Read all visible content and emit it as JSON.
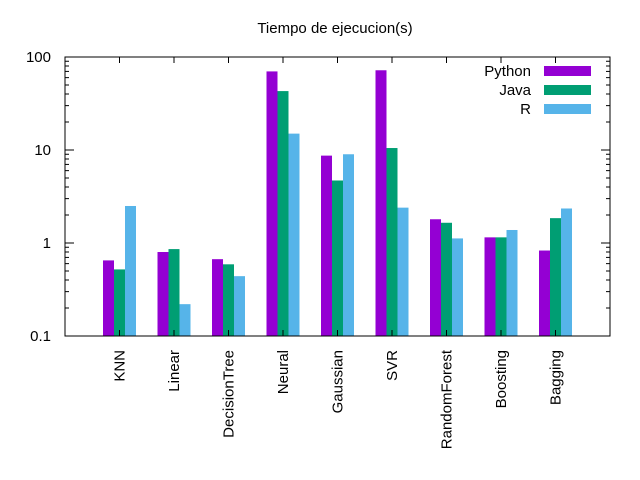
{
  "chart_data": {
    "type": "bar",
    "title": "Tiempo de ejecucion(s)",
    "xlabel": "",
    "ylabel": "",
    "yscale": "log",
    "ylim": [
      0.1,
      100
    ],
    "yticks": [
      0.1,
      1,
      10,
      100
    ],
    "ytick_labels": [
      "0.1",
      "1",
      "10",
      "100"
    ],
    "grid": false,
    "legend_position": "top-right",
    "categories": [
      "KNN",
      "Linear",
      "DecisionTree",
      "Neural",
      "Gaussian",
      "SVR",
      "RandomForest",
      "Boosting",
      "Bagging"
    ],
    "series": [
      {
        "name": "Python",
        "color": "#9400d3",
        "values": [
          0.65,
          0.8,
          0.67,
          70,
          8.7,
          72,
          1.8,
          1.15,
          0.83
        ]
      },
      {
        "name": "Java",
        "color": "#009e73",
        "values": [
          0.52,
          0.86,
          0.59,
          43,
          4.7,
          10.5,
          1.65,
          1.15,
          1.85
        ]
      },
      {
        "name": "R",
        "color": "#56b4e9",
        "values": [
          2.5,
          0.22,
          0.44,
          15,
          9.0,
          2.4,
          1.12,
          1.38,
          2.35
        ]
      }
    ]
  }
}
